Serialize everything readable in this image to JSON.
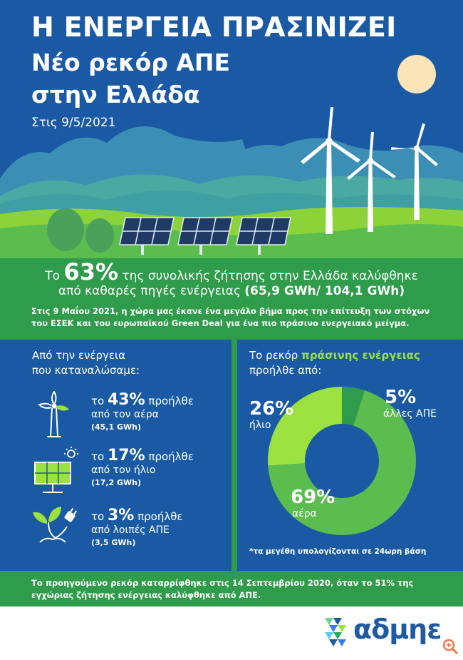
{
  "header": {
    "title": "Η ΕΝΕΡΓΕΙΑ ΠΡΑΣΙΝΙΖΕΙ",
    "subtitle_line1": "Νέο ρεκόρ ΑΠΕ",
    "subtitle_line2": "στην Ελλάδα",
    "date": "Στις 9/5/2021"
  },
  "band": {
    "pre": "Το ",
    "pct": "63%",
    "post": " της συνολικής ζήτησης στην Ελλάδα καλύφθηκε",
    "line2_text": "από καθαρές πηγές ενέργειας ",
    "line2_bold": "(65,9 GWh/ 104,1 GWh)",
    "paragraph": "Στις 9 Μαΐου 2021, η χώρα μας έκανε ένα μεγάλο βήμα προς την επίτευξη των στόχων του ΕΣΕΚ και του ευρωπαϊκού Green Deal για ένα πιο πράσινο ενεργειακό μείγμα."
  },
  "left": {
    "heading_line1": "Από την ενέργεια",
    "heading_line2": "που καταναλώσαμε:",
    "items": [
      {
        "icon": "wind-turbine-icon",
        "pre": "το ",
        "pct": "43%",
        "post": " προήλθε",
        "line2": "από τον αέρα",
        "line3": "(45,1 GWh)"
      },
      {
        "icon": "solar-panel-icon",
        "pre": "το ",
        "pct": "17%",
        "post": " προήλθε",
        "line2": "από τον ήλιο",
        "line3": "(17,2 GWh)"
      },
      {
        "icon": "plant-plug-icon",
        "pre": "το ",
        "pct": "3%",
        "post": " προήλθε",
        "line2": "από λοιπές ΑΠΕ",
        "line3": "(3,5 GWh)"
      }
    ]
  },
  "right": {
    "heading_pre": "Το ρεκόρ ",
    "heading_bold": "πράσινης ενέργειας",
    "heading_line2": "προήλθε από:",
    "note": "*τα μεγέθη υπολογίζονται σε 24ωρη βάση"
  },
  "chart_data": {
    "type": "pie",
    "categories": [
      "αέρα",
      "ήλιο",
      "άλλες ΑΠΕ"
    ],
    "values": [
      69,
      26,
      5
    ],
    "labels": [
      "69%",
      "26%",
      "5%"
    ],
    "colors": [
      "#5cbd4f",
      "#9be13f",
      "#2e9c4a"
    ],
    "title": ""
  },
  "footer": {
    "paragraph": "Το προηγούμενο ρεκόρ καταρρίφθηκε στις 14 Σεπτεμβρίου 2020, όταν το 51% της εγχώριας ζήτησης ενέργειας καλύφθηκε από ΑΠΕ."
  },
  "brand": {
    "logo_text": "αδμηε",
    "logo_icon": "admie-logo-icon",
    "zoom_icon": "zoom-in-icon"
  },
  "colors": {
    "blue": "#1a5aa4",
    "green": "#2e9c4a",
    "lime": "#9be13f"
  }
}
